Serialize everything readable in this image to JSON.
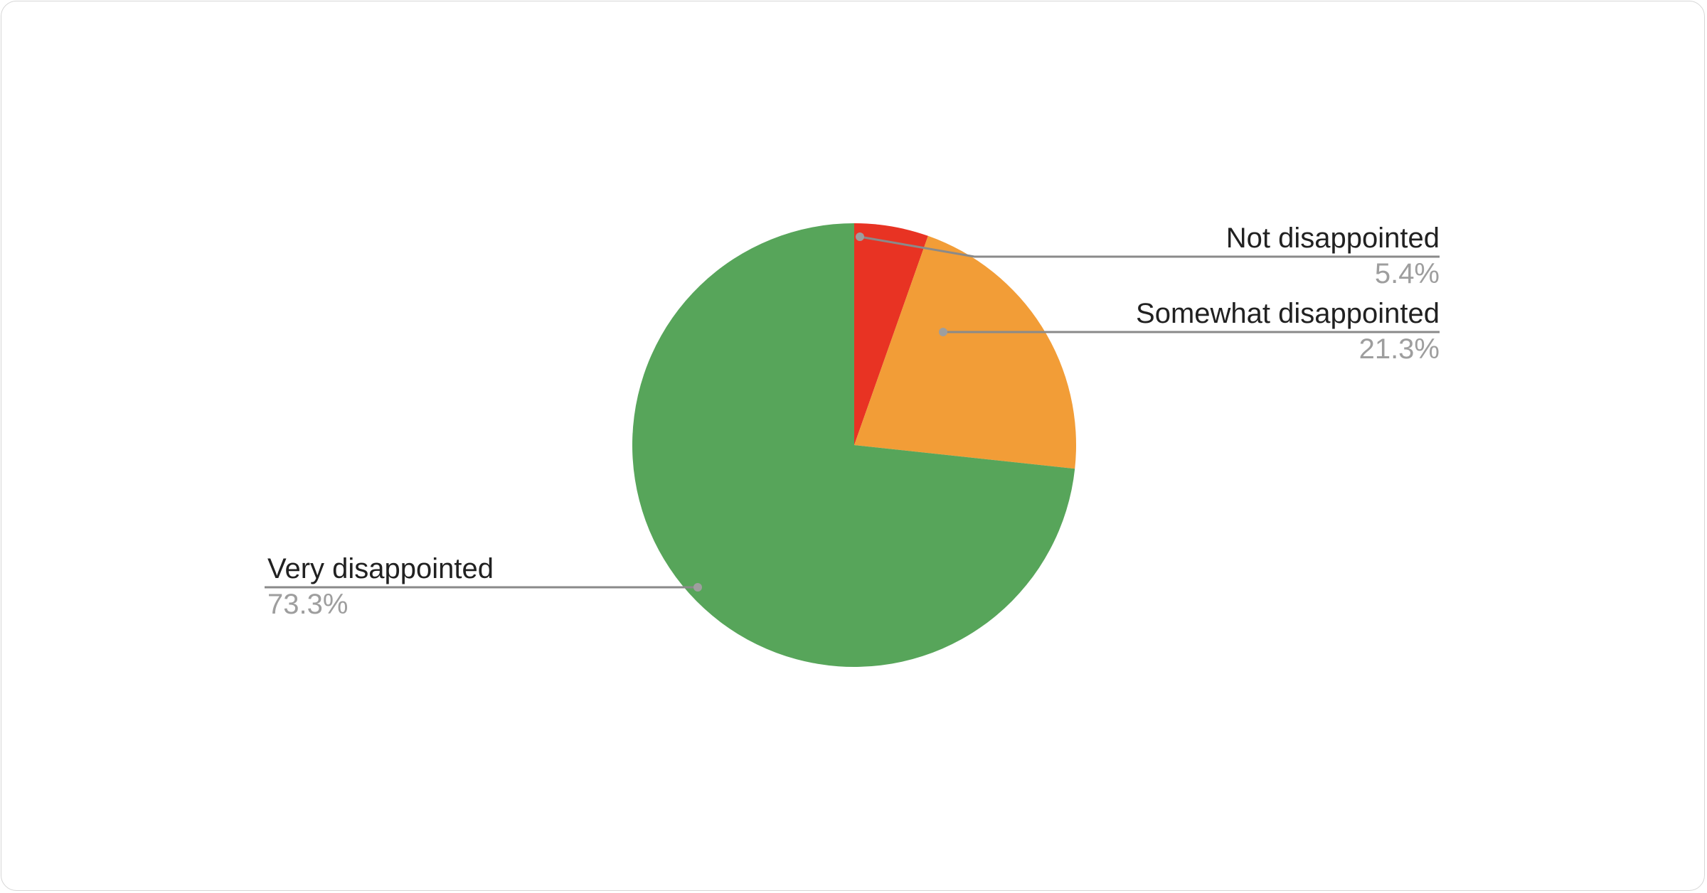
{
  "chart_data": {
    "type": "pie",
    "title": "",
    "start_angle": "top, clockwise",
    "slices": [
      {
        "label": "Not disappointed",
        "value": 5.4,
        "value_label": "5.4%",
        "color": "#e83323"
      },
      {
        "label": "Somewhat disappointed",
        "value": 21.3,
        "value_label": "21.3%",
        "color": "#f29d37"
      },
      {
        "label": "Very disappointed",
        "value": 73.3,
        "value_label": "73.3%",
        "color": "#57a55a"
      }
    ],
    "legend": "none (leader-line labels)"
  }
}
